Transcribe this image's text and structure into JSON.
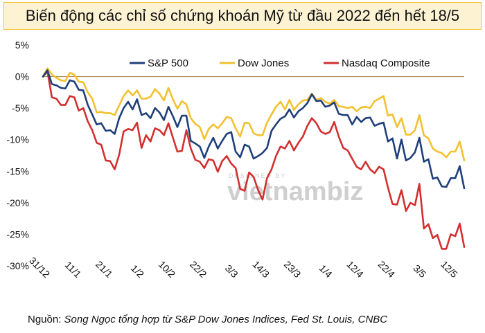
{
  "title": "Biến động các chỉ số chứng khoán Mỹ từ đầu 2022 đến hết 18/5",
  "source": {
    "prefix": "Nguồn: ",
    "text": "Song Ngọc tổng hợp từ S&P Dow Jones Indices, Fed St. Louis, CNBC"
  },
  "watermark": {
    "small": "DESIGNED BY",
    "brand": "vietnambiz"
  },
  "colors": {
    "sp500": "#1f3f7a",
    "dow": "#f2c12e",
    "nasdaq": "#d32f2f",
    "zero_line": "#a9824a"
  },
  "chart_data": {
    "type": "line",
    "ylim": [
      -30,
      5
    ],
    "y_ticks": [
      "5%",
      "0%",
      "-5%",
      "-10%",
      "-15%",
      "-20%",
      "-25%",
      "-30%"
    ],
    "y_tick_values": [
      5,
      0,
      -5,
      -10,
      -15,
      -20,
      -25,
      -30
    ],
    "x_ticks": [
      "31/12",
      "11/1",
      "21/1",
      "1/2",
      "10/2",
      "22/2",
      "3/3",
      "14/3",
      "23/3",
      "1/4",
      "12/4",
      "22/4",
      "3/5",
      "12/5"
    ],
    "x_tick_index": [
      0,
      7,
      14,
      21,
      28,
      35,
      42,
      49,
      56,
      63,
      70,
      77,
      84,
      91
    ],
    "legend_position": "top",
    "series": [
      {
        "name": "S&P 500",
        "key": "sp500",
        "values": [
          0,
          1.0,
          -1.2,
          -1.4,
          -1.8,
          -1.9,
          -0.6,
          -0.8,
          -2.1,
          -2.2,
          -4.5,
          -6.0,
          -7.6,
          -7.4,
          -8.6,
          -8.5,
          -9.1,
          -6.6,
          -5.0,
          -4.0,
          -5.2,
          -3.6,
          -6.1,
          -5.8,
          -6.6,
          -5.0,
          -5.7,
          -6.9,
          -4.8,
          -6.3,
          -8.0,
          -6.2,
          -6.2,
          -10.2,
          -10.6,
          -11.1,
          -12.9,
          -11.1,
          -9.7,
          -11.4,
          -10.2,
          -9.1,
          -8.8,
          -11.9,
          -12.8,
          -10.8,
          -11.1,
          -13.0,
          -12.6,
          -12.1,
          -11.3,
          -8.6,
          -7.6,
          -6.7,
          -6.3,
          -5.2,
          -6.5,
          -5.5,
          -5.0,
          -4.2,
          -2.8,
          -3.9,
          -3.8,
          -4.8,
          -4.6,
          -4.1,
          -5.9,
          -6.1,
          -6.1,
          -7.6,
          -6.4,
          -7.2,
          -6.6,
          -6.5,
          -7.8,
          -7.5,
          -7.3,
          -10.3,
          -9.8,
          -13.0,
          -10.0,
          -13.3,
          -12.9,
          -12.0,
          -9.7,
          -13.5,
          -13.1,
          -16.2,
          -16.0,
          -17.4,
          -17.5,
          -16.1,
          -16.1,
          -14.2,
          -17.7
        ]
      },
      {
        "name": "Dow Jones",
        "key": "dow",
        "values": [
          0,
          1.3,
          0.3,
          -0.2,
          -0.6,
          -0.7,
          0.6,
          0.3,
          -0.8,
          -0.9,
          -2.5,
          -3.5,
          -5.7,
          -5.6,
          -5.8,
          -5.8,
          -6.1,
          -4.6,
          -3.1,
          -2.2,
          -3.0,
          -2.2,
          -3.5,
          -3.5,
          -3.2,
          -2.0,
          -2.7,
          -3.8,
          -1.8,
          -3.6,
          -5.1,
          -3.9,
          -4.4,
          -6.6,
          -7.5,
          -8.0,
          -9.9,
          -8.3,
          -7.6,
          -8.2,
          -7.4,
          -6.4,
          -6.6,
          -8.2,
          -9.5,
          -7.3,
          -7.4,
          -9.0,
          -9.3,
          -9.3,
          -7.3,
          -6.0,
          -4.8,
          -4.0,
          -5.2,
          -3.7,
          -5.3,
          -4.4,
          -3.8,
          -3.7,
          -2.7,
          -3.7,
          -3.4,
          -4.0,
          -4.3,
          -3.7,
          -4.7,
          -4.8,
          -5.0,
          -4.8,
          -5.5,
          -4.9,
          -4.8,
          -5.0,
          -3.9,
          -3.5,
          -3.1,
          -6.2,
          -6.0,
          -8.0,
          -6.6,
          -9.2,
          -9.2,
          -8.5,
          -6.1,
          -9.3,
          -9.8,
          -11.4,
          -11.9,
          -12.1,
          -12.8,
          -11.9,
          -11.9,
          -10.3,
          -13.3
        ]
      },
      {
        "name": "Nasdaq Composite",
        "key": "nasdaq",
        "values": [
          0,
          0.8,
          -3.3,
          -3.5,
          -4.5,
          -4.5,
          -3.1,
          -3.3,
          -5.4,
          -5.0,
          -7.1,
          -8.5,
          -10.5,
          -10.8,
          -13.3,
          -13.4,
          -14.7,
          -12.4,
          -8.7,
          -8.3,
          -8.5,
          -7.3,
          -11.3,
          -9.3,
          -10.3,
          -8.2,
          -8.5,
          -9.3,
          -7.4,
          -9.7,
          -11.9,
          -11.8,
          -8.5,
          -11.4,
          -13.2,
          -13.5,
          -14.5,
          -13.1,
          -13.3,
          -15.1,
          -13.4,
          -12.6,
          -13.8,
          -14.5,
          -17.8,
          -18.1,
          -15.2,
          -15.9,
          -18.0,
          -19.5,
          -16.1,
          -14.7,
          -12.6,
          -11.1,
          -11.4,
          -10.2,
          -11.7,
          -10.5,
          -9.5,
          -7.8,
          -6.6,
          -7.4,
          -8.7,
          -9.1,
          -8.8,
          -7.2,
          -9.5,
          -11.3,
          -11.7,
          -13.0,
          -14.3,
          -14.7,
          -13.5,
          -14.7,
          -15.3,
          -14.3,
          -14.7,
          -17.6,
          -20.2,
          -20.3,
          -18.0,
          -21.3,
          -20.0,
          -20.4,
          -17.0,
          -24.1,
          -23.4,
          -25.6,
          -25.1,
          -27.3,
          -27.3,
          -25.0,
          -25.3,
          -23.3,
          -27.0
        ]
      }
    ]
  }
}
